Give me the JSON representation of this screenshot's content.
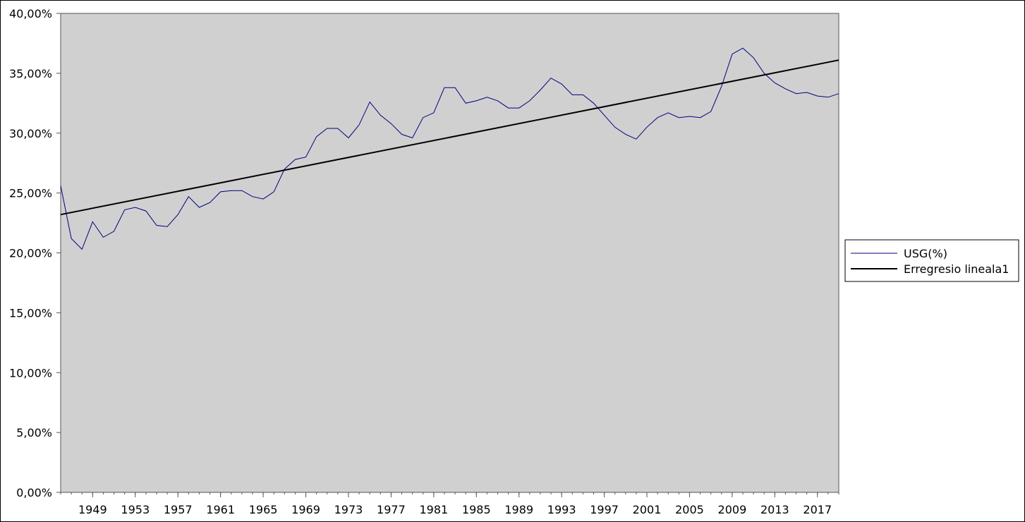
{
  "chart_data": {
    "type": "line",
    "title": "",
    "xlabel": "",
    "ylabel": "",
    "x": [
      1946,
      1947,
      1948,
      1949,
      1950,
      1951,
      1952,
      1953,
      1954,
      1955,
      1956,
      1957,
      1958,
      1959,
      1960,
      1961,
      1962,
      1963,
      1964,
      1965,
      1966,
      1967,
      1968,
      1969,
      1970,
      1971,
      1972,
      1973,
      1974,
      1975,
      1976,
      1977,
      1978,
      1979,
      1980,
      1981,
      1982,
      1983,
      1984,
      1985,
      1986,
      1987,
      1988,
      1989,
      1990,
      1991,
      1992,
      1993,
      1994,
      1995,
      1996,
      1997,
      1998,
      1999,
      2000,
      2001,
      2002,
      2003,
      2004,
      2005,
      2006,
      2007,
      2008,
      2009,
      2010,
      2011,
      2012,
      2013,
      2014,
      2015,
      2016,
      2017,
      2018,
      2019
    ],
    "xlim": [
      1946,
      2019
    ],
    "x_tick_labels": [
      "1949",
      "1953",
      "1957",
      "1961",
      "1965",
      "1969",
      "1973",
      "1977",
      "1981",
      "1985",
      "1989",
      "1993",
      "1997",
      "2001",
      "2005",
      "2009",
      "2013",
      "2017"
    ],
    "x_ticks": [
      1949,
      1953,
      1957,
      1961,
      1965,
      1969,
      1973,
      1977,
      1981,
      1985,
      1989,
      1993,
      1997,
      2001,
      2005,
      2009,
      2013,
      2017
    ],
    "ylim": [
      0,
      40
    ],
    "y_ticks": [
      0,
      5,
      10,
      15,
      20,
      25,
      30,
      35,
      40
    ],
    "y_tick_labels": [
      "0,00%",
      "5,00%",
      "10,00%",
      "15,00%",
      "20,00%",
      "25,00%",
      "30,00%",
      "35,00%",
      "40,00%"
    ],
    "grid": false,
    "legend_position": "right",
    "plot_background": "#d0d0d0",
    "series": [
      {
        "name": "USG(%)",
        "color": "#000080",
        "values": [
          25.6,
          21.2,
          20.3,
          22.6,
          21.3,
          21.8,
          23.6,
          23.8,
          23.5,
          22.3,
          22.2,
          23.2,
          24.7,
          23.8,
          24.2,
          25.1,
          25.2,
          25.2,
          24.7,
          24.5,
          25.1,
          27.0,
          27.8,
          28.0,
          29.7,
          30.4,
          30.4,
          29.6,
          30.7,
          32.6,
          31.5,
          30.8,
          29.9,
          29.6,
          31.3,
          31.7,
          33.8,
          33.8,
          32.5,
          32.7,
          33.0,
          32.7,
          32.1,
          32.1,
          32.7,
          33.6,
          34.6,
          34.1,
          33.2,
          33.2,
          32.5,
          31.5,
          30.5,
          29.9,
          29.5,
          30.5,
          31.3,
          31.7,
          31.3,
          31.4,
          31.3,
          31.8,
          33.9,
          36.6,
          37.1,
          36.3,
          35.0,
          34.2,
          33.7,
          33.3,
          33.4,
          33.1,
          33.0,
          33.3
        ]
      },
      {
        "name": "Erregresio lineala1",
        "color": "#000000",
        "type": "linear-trend",
        "values_at_xlim": [
          23.2,
          36.1
        ]
      }
    ]
  }
}
